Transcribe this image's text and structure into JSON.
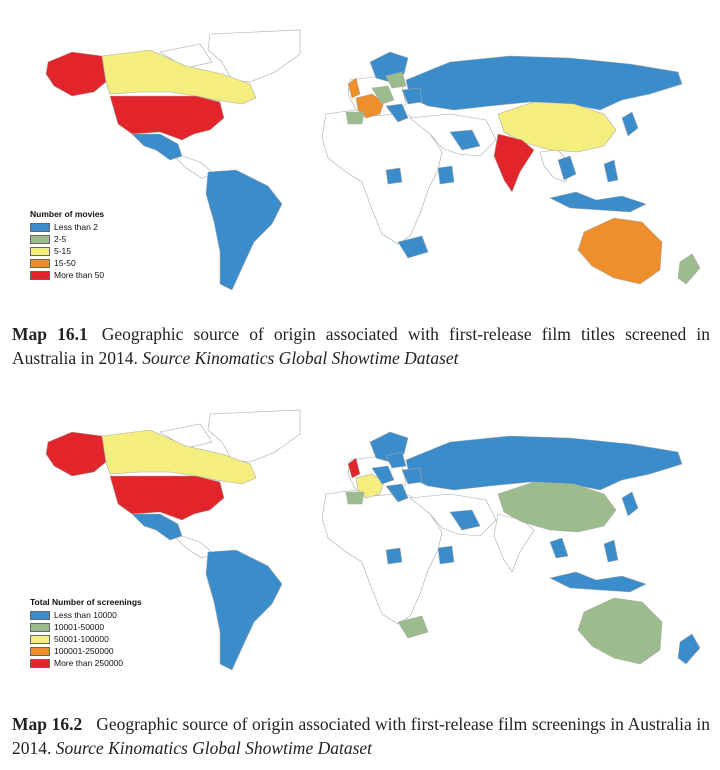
{
  "colors": {
    "blue": "#3a8ccb",
    "green": "#9cbc8e",
    "yellow": "#f4ee7e",
    "orange": "#ef8f2c",
    "red": "#e2252b",
    "none": "#ffffff",
    "border": "#b8b8b8"
  },
  "map1": {
    "legend_title": "Number of movies",
    "legend": [
      {
        "label": "Less than 2",
        "color": "#3a8ccb"
      },
      {
        "label": "2-5",
        "color": "#9cbc8e"
      },
      {
        "label": "5-15",
        "color": "#f4ee7e"
      },
      {
        "label": "15-50",
        "color": "#ef8f2c"
      },
      {
        "label": "More than 50",
        "color": "#e2252b"
      }
    ],
    "caption": {
      "label": "Map 16.1",
      "text": "Geographic source of origin associated with first-release film titles screened in Australia in 2014.",
      "source": "Source Kinomatics Global Showtime Dataset"
    }
  },
  "map2": {
    "legend_title": "Total Number of screenings",
    "legend": [
      {
        "label": "Less than 10000",
        "color": "#3a8ccb"
      },
      {
        "label": "10001-50000",
        "color": "#9cbc8e"
      },
      {
        "label": "50001-100000",
        "color": "#f4ee7e"
      },
      {
        "label": "100001-250000",
        "color": "#ef8f2c"
      },
      {
        "label": "More than 250000",
        "color": "#e2252b"
      }
    ],
    "caption": {
      "label": "Map 16.2",
      "text": "Geographic source of origin associated with first-release film screenings in Australia in 2014.",
      "source": "Source Kinomatics Global Showtime Dataset"
    }
  }
}
